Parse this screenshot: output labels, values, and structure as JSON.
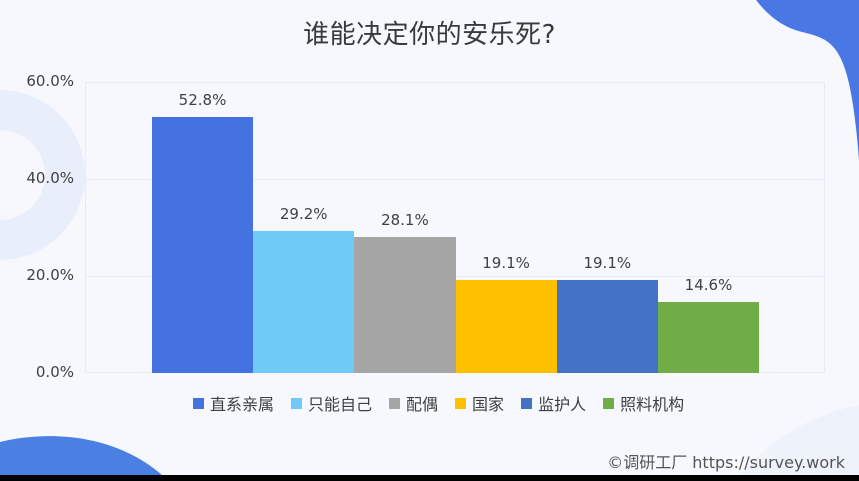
{
  "chart_data": {
    "type": "bar",
    "title": "谁能决定你的安乐死?",
    "categories": [
      "直系亲属",
      "只能自己",
      "配偶",
      "国家",
      "监护人",
      "照料机构"
    ],
    "values": [
      52.8,
      29.2,
      28.1,
      19.1,
      19.1,
      14.6
    ],
    "value_labels": [
      "52.8%",
      "29.2%",
      "28.1%",
      "19.1%",
      "19.1%",
      "14.6%"
    ],
    "colors": [
      "#4472e0",
      "#6ecbf8",
      "#a5a5a5",
      "#ffc000",
      "#4472c4",
      "#70ad47"
    ],
    "xlabel": "",
    "ylabel": "",
    "ylim": [
      0,
      60
    ],
    "yticks": [
      "0.0%",
      "20.0%",
      "40.0%",
      "60.0%"
    ],
    "grid": true,
    "legend_position": "bottom"
  },
  "legend": {
    "items": [
      {
        "label": "直系亲属",
        "color": "#4472e0"
      },
      {
        "label": "只能自己",
        "color": "#6ecbf8"
      },
      {
        "label": "配偶",
        "color": "#a5a5a5"
      },
      {
        "label": "国家",
        "color": "#ffc000"
      },
      {
        "label": "监护人",
        "color": "#4472c4"
      },
      {
        "label": "照料机构",
        "color": "#70ad47"
      }
    ]
  },
  "footer": {
    "credit": "©调研工厂 https://survey.work"
  }
}
